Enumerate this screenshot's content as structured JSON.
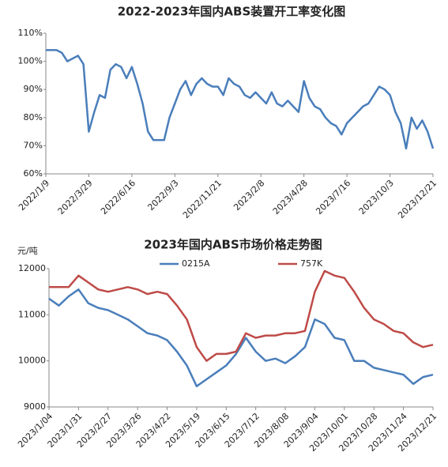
{
  "chart_data": [
    {
      "type": "line",
      "title": "2022-2023年国内ABS装置开工率变化图",
      "categories": [
        "2022/1/9",
        null,
        null,
        null,
        null,
        null,
        null,
        null,
        "2022/3/29",
        null,
        null,
        null,
        null,
        null,
        null,
        null,
        "2022/6/16",
        null,
        null,
        null,
        null,
        null,
        null,
        null,
        "2022/9/3",
        null,
        null,
        null,
        null,
        null,
        null,
        null,
        "2022/11/21",
        null,
        null,
        null,
        null,
        null,
        null,
        null,
        "2023/2/8",
        null,
        null,
        null,
        null,
        null,
        null,
        null,
        "2023/4/28",
        null,
        null,
        null,
        null,
        null,
        null,
        null,
        "2023/7/16",
        null,
        null,
        null,
        null,
        null,
        null,
        null,
        "2023/10/3",
        null,
        null,
        null,
        null,
        null,
        null,
        null,
        "2023/12/21"
      ],
      "series": [
        {
          "color": "#4a7ebb",
          "values": [
            104,
            104,
            104,
            103,
            100,
            101,
            102,
            99,
            75,
            82,
            88,
            87,
            97,
            99,
            98,
            94,
            98,
            92,
            85,
            75,
            72,
            72,
            72,
            80,
            85,
            90,
            93,
            88,
            92,
            94,
            92,
            91,
            91,
            88,
            94,
            92,
            91,
            88,
            87,
            89,
            87,
            85,
            89,
            85,
            84,
            86,
            84,
            82,
            93,
            87,
            84,
            83,
            80,
            78,
            77,
            74,
            78,
            80,
            82,
            84,
            85,
            88,
            91,
            90,
            88,
            82,
            78,
            69,
            80,
            76,
            79,
            75,
            69
          ]
        }
      ],
      "ylim": [
        60,
        110
      ],
      "yticks": [
        {
          "value": 60,
          "label": "60%"
        },
        {
          "value": 70,
          "label": "70%"
        },
        {
          "value": 80,
          "label": "80%"
        },
        {
          "value": 90,
          "label": "90%"
        },
        {
          "value": 100,
          "label": "100%"
        },
        {
          "value": 110,
          "label": "110%"
        }
      ]
    },
    {
      "type": "line",
      "title": "2023年国内ABS市场价格走势图",
      "y_label": "元/吨",
      "categories": [
        "2023/1/04",
        null,
        null,
        "2023/1/31",
        null,
        null,
        "2023/2/27",
        null,
        null,
        "2023/3/26",
        null,
        null,
        "2023/4/22",
        null,
        null,
        "2023/5/19",
        null,
        null,
        "2023/6/15",
        null,
        null,
        "2023/7/12",
        null,
        null,
        "2023/8/08",
        null,
        null,
        "2023/9/04",
        null,
        null,
        "2023/10/01",
        null,
        null,
        "2023/10/28",
        null,
        null,
        "2023/11/24",
        null,
        null,
        "2023/12/21"
      ],
      "series": [
        {
          "name": "0215A",
          "color": "#4a7ebb",
          "values": [
            11350,
            11200,
            11400,
            11550,
            11250,
            11150,
            11100,
            11000,
            10900,
            10750,
            10600,
            10550,
            10450,
            10200,
            9900,
            9450,
            9600,
            9750,
            9900,
            10150,
            10500,
            10200,
            10000,
            10050,
            9950,
            10100,
            10300,
            10900,
            10800,
            10500,
            10450,
            10000,
            10000,
            9850,
            9800,
            9750,
            9700,
            9500,
            9650,
            9700
          ]
        },
        {
          "name": "757K",
          "color": "#be4b48",
          "values": [
            11600,
            11600,
            11600,
            11850,
            11700,
            11550,
            11500,
            11550,
            11600,
            11550,
            11450,
            11500,
            11450,
            11200,
            10900,
            10300,
            10000,
            10150,
            10150,
            10200,
            10600,
            10500,
            10550,
            10550,
            10600,
            10600,
            10650,
            11500,
            11950,
            11850,
            11800,
            11500,
            11150,
            10900,
            10800,
            10650,
            10600,
            10400,
            10300,
            10350
          ]
        }
      ],
      "ylim": [
        9000,
        12000
      ],
      "yticks": [
        9000,
        10000,
        11000,
        12000
      ],
      "legend": "top"
    }
  ]
}
